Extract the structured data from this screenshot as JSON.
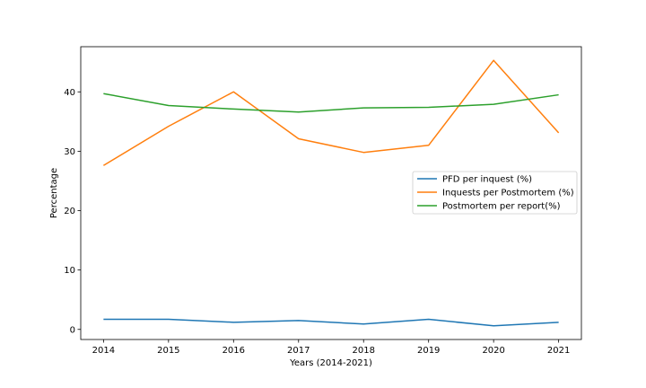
{
  "chart_data": {
    "type": "line",
    "title": "",
    "xlabel": "Years (2014-2021)",
    "ylabel": "Percentage",
    "x": [
      2014,
      2015,
      2016,
      2017,
      2018,
      2019,
      2020,
      2021
    ],
    "xticks": [
      "2014",
      "2015",
      "2016",
      "2017",
      "2018",
      "2019",
      "2020",
      "2021"
    ],
    "yticks": [
      "0",
      "10",
      "20",
      "30",
      "40"
    ],
    "xlim": [
      2013.65,
      2021.35
    ],
    "ylim": [
      -1.7,
      47.6
    ],
    "grid": false,
    "legend_position": "center-right",
    "series": [
      {
        "name": "PFD per inquest (%)",
        "color": "#1f77b4",
        "values": [
          1.7,
          1.7,
          1.2,
          1.5,
          0.9,
          1.7,
          0.6,
          1.2
        ]
      },
      {
        "name": "Inquests per Postmortem (%)",
        "color": "#ff7f0e",
        "values": [
          27.6,
          34.2,
          40.0,
          32.1,
          29.8,
          31.0,
          45.3,
          33.1
        ]
      },
      {
        "name": "Postmortem per report(%)",
        "color": "#2ca02c",
        "values": [
          39.7,
          37.7,
          37.1,
          36.6,
          37.3,
          37.4,
          37.9,
          39.5
        ]
      }
    ]
  }
}
